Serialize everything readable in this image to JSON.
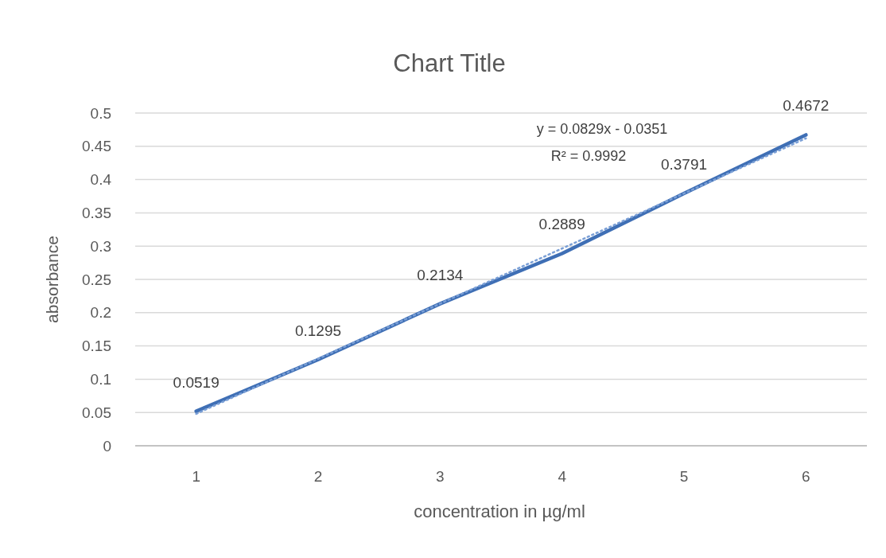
{
  "chart_data": {
    "type": "line",
    "title": "Chart Title",
    "xlabel": "concentration in µg/ml",
    "ylabel": "absorbance",
    "categories": [
      "1",
      "2",
      "3",
      "4",
      "5",
      "6"
    ],
    "series": [
      {
        "color": "#3f6fb5",
        "values": [
          0.0519,
          0.1295,
          0.2134,
          0.2889,
          0.3791,
          0.4672
        ],
        "value_labels": [
          "0.0519",
          "0.1295",
          "0.2134",
          "0.2889",
          "0.3791",
          "0.4672"
        ]
      },
      {
        "type": "line",
        "color": "#7a9fd6",
        "x": [
          "1",
          "6"
        ],
        "values": [
          0.048,
          0.462
        ],
        "line_style": "dotted"
      }
    ],
    "ylim": [
      0,
      0.5
    ],
    "yticks": [
      0,
      0.05,
      0.1,
      0.15,
      0.2,
      0.25,
      0.3,
      0.35,
      0.4,
      0.45,
      0.5
    ],
    "grid": "y",
    "marker": "none",
    "annotations": [
      "y = 0.0829x - 0.0351",
      "R² = 0.9992"
    ]
  }
}
